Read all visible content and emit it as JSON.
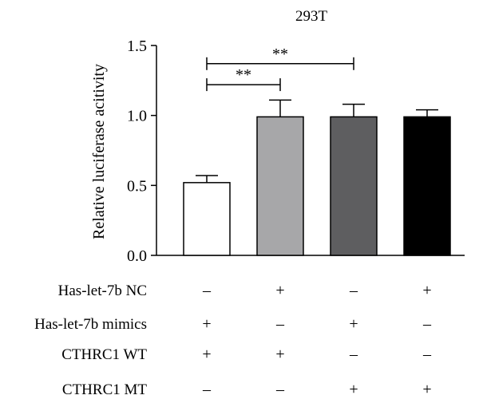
{
  "chart_data": {
    "type": "bar",
    "title": "293T",
    "ylabel": "Relative luciferase acitivity",
    "xlabel": "",
    "ylim": [
      0,
      1.5
    ],
    "yticks": [
      "0.0",
      "0.5",
      "1.0",
      "1.5"
    ],
    "ytick_values": [
      0,
      0.5,
      1.0,
      1.5
    ],
    "grid": false,
    "bars": [
      {
        "value": 0.52,
        "error": 0.05,
        "color": "#ffffff"
      },
      {
        "value": 0.99,
        "error": 0.12,
        "color": "#a7a7a9"
      },
      {
        "value": 0.99,
        "error": 0.09,
        "color": "#5e5e60"
      },
      {
        "value": 0.99,
        "error": 0.05,
        "color": "#000000"
      }
    ],
    "significance": [
      {
        "from": 0,
        "to": 1,
        "y": 1.22,
        "label": "**"
      },
      {
        "from": 0,
        "to": 2,
        "y": 1.37,
        "label": "**"
      }
    ],
    "conditions": [
      {
        "label": "Has-let-7b NC",
        "values": [
          "–",
          "+",
          "–",
          "+"
        ]
      },
      {
        "label": "Has-let-7b mimics",
        "values": [
          "+",
          "–",
          "+",
          "–"
        ]
      },
      {
        "label": "CTHRC1 WT",
        "values": [
          "+",
          "+",
          "–",
          "–"
        ]
      },
      {
        "label": "CTHRC1 MT",
        "values": [
          "–",
          "–",
          "+",
          "+"
        ]
      }
    ]
  }
}
